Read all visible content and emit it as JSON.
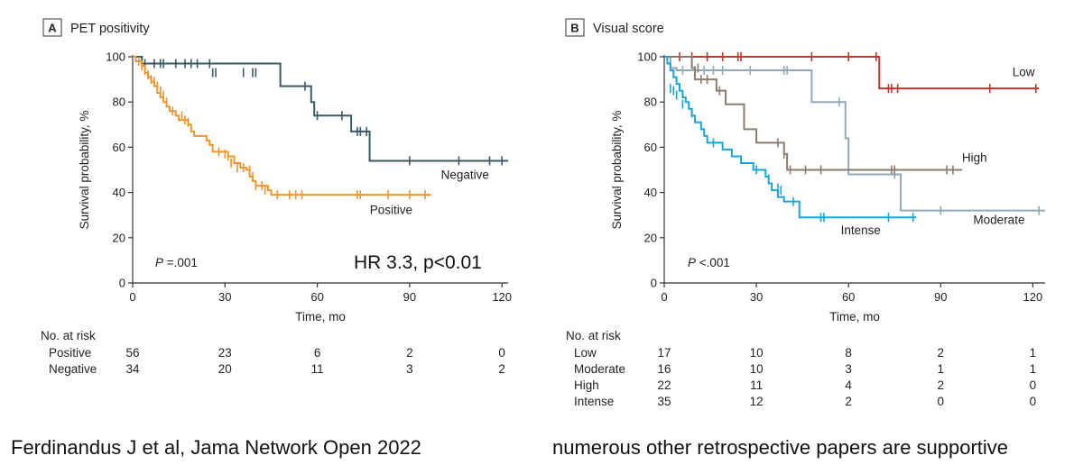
{
  "captions": {
    "left": "Ferdinandus J et al, Jama Network Open 2022",
    "right": "numerous other retrospective papers are supportive"
  },
  "chart_data": [
    {
      "type": "line",
      "panel": "A",
      "title": "PET positivity",
      "xlabel": "Time, mo",
      "ylabel": "Survival probability, %",
      "xlim": [
        0,
        122
      ],
      "ylim": [
        0,
        100
      ],
      "x_ticks": [
        0,
        30,
        60,
        90,
        120
      ],
      "y_ticks": [
        0,
        20,
        40,
        60,
        80,
        100
      ],
      "annotations": {
        "p_value": "P =.001",
        "hr": "HR 3.3, p<0.01"
      },
      "series": [
        {
          "name": "Negative",
          "color": "#3b5a66",
          "steps": [
            [
              0,
              100
            ],
            [
              3,
              97
            ],
            [
              48,
              97
            ],
            [
              48,
              93
            ],
            [
              48,
              87
            ],
            [
              56,
              87
            ],
            [
              58,
              80
            ],
            [
              59,
              74
            ],
            [
              70,
              74
            ],
            [
              71,
              67
            ],
            [
              76,
              67
            ],
            [
              77,
              54
            ],
            [
              122,
              54
            ]
          ],
          "censors": [
            [
              3,
              97
            ],
            [
              4,
              97
            ],
            [
              7,
              97
            ],
            [
              9,
              97
            ],
            [
              10,
              97
            ],
            [
              14,
              97
            ],
            [
              17,
              97
            ],
            [
              19,
              97
            ],
            [
              21,
              97
            ],
            [
              25,
              97
            ],
            [
              26,
              93
            ],
            [
              27,
              93
            ],
            [
              36,
              93
            ],
            [
              39,
              93
            ],
            [
              40,
              93
            ],
            [
              56,
              87
            ],
            [
              60,
              74
            ],
            [
              68,
              74
            ],
            [
              73,
              67
            ],
            [
              74,
              67
            ],
            [
              76,
              67
            ],
            [
              90,
              54
            ],
            [
              106,
              54
            ],
            [
              116,
              54
            ],
            [
              120,
              54
            ]
          ]
        },
        {
          "name": "Positive",
          "color": "#f0952b",
          "steps": [
            [
              0,
              100
            ],
            [
              1,
              98
            ],
            [
              3,
              96
            ],
            [
              4,
              93
            ],
            [
              5,
              91
            ],
            [
              6,
              89
            ],
            [
              7,
              87
            ],
            [
              8,
              84
            ],
            [
              9,
              82
            ],
            [
              10,
              80
            ],
            [
              11,
              78
            ],
            [
              12,
              76
            ],
            [
              14,
              74
            ],
            [
              15,
              72
            ],
            [
              18,
              70
            ],
            [
              19,
              67
            ],
            [
              20,
              65
            ],
            [
              24,
              63
            ],
            [
              25,
              61
            ],
            [
              26,
              58
            ],
            [
              30,
              58
            ],
            [
              31,
              56
            ],
            [
              33,
              53
            ],
            [
              35,
              51
            ],
            [
              37,
              50
            ],
            [
              38,
              47
            ],
            [
              39,
              45
            ],
            [
              40,
              43
            ],
            [
              44,
              41
            ],
            [
              45,
              39
            ],
            [
              97,
              39
            ]
          ],
          "censors": [
            [
              2,
              98
            ],
            [
              3,
              96
            ],
            [
              4,
              94
            ],
            [
              5,
              92
            ],
            [
              6,
              90
            ],
            [
              7,
              89
            ],
            [
              8,
              87
            ],
            [
              9,
              85
            ],
            [
              10,
              83
            ],
            [
              11,
              80
            ],
            [
              13,
              76
            ],
            [
              16,
              74
            ],
            [
              17,
              72
            ],
            [
              18,
              71
            ],
            [
              28,
              58
            ],
            [
              30,
              57
            ],
            [
              31,
              56
            ],
            [
              32,
              53
            ],
            [
              34,
              51
            ],
            [
              36,
              51
            ],
            [
              38,
              50
            ],
            [
              39,
              47
            ],
            [
              40,
              43
            ],
            [
              42,
              43
            ],
            [
              43,
              41
            ],
            [
              47,
              39
            ],
            [
              51,
              39
            ],
            [
              53,
              39
            ],
            [
              55,
              39
            ],
            [
              73,
              39
            ],
            [
              74,
              39
            ],
            [
              83,
              39
            ],
            [
              90,
              39
            ],
            [
              95,
              39
            ]
          ]
        }
      ],
      "labels": [
        {
          "series": "Negative",
          "text": "Negative",
          "x": 108,
          "y": 46
        },
        {
          "series": "Positive",
          "text": "Positive",
          "x": 84,
          "y": 30.5
        }
      ],
      "risk_table": {
        "header": "No. at risk",
        "times": [
          0,
          30,
          60,
          90,
          120
        ],
        "rows": [
          {
            "label": "Positive",
            "values": [
              "56",
              "23",
              "6",
              "2",
              "0"
            ]
          },
          {
            "label": "Negative",
            "values": [
              "34",
              "20",
              "11",
              "3",
              "2"
            ]
          }
        ]
      }
    },
    {
      "type": "line",
      "panel": "B",
      "title": "Visual score",
      "xlabel": "Time, mo",
      "ylabel": "Survival probability, %",
      "xlim": [
        0,
        124
      ],
      "ylim": [
        0,
        100
      ],
      "x_ticks": [
        0,
        30,
        60,
        90,
        120
      ],
      "y_ticks": [
        0,
        20,
        40,
        60,
        80,
        100
      ],
      "annotations": {
        "p_value": "P <.001"
      },
      "series": [
        {
          "name": "Low",
          "color": "#c0392b",
          "steps": [
            [
              0,
              100
            ],
            [
              70,
              100
            ],
            [
              70,
              86
            ],
            [
              122,
              86
            ]
          ],
          "censors": [
            [
              5,
              100
            ],
            [
              9,
              100
            ],
            [
              14,
              100
            ],
            [
              19,
              100
            ],
            [
              24,
              100
            ],
            [
              25,
              100
            ],
            [
              48,
              100
            ],
            [
              60,
              100
            ],
            [
              69,
              100
            ],
            [
              73,
              86
            ],
            [
              74,
              86
            ],
            [
              76,
              86
            ],
            [
              106,
              86
            ],
            [
              121,
              86
            ]
          ]
        },
        {
          "name": "Moderate",
          "color": "#8fa9b5",
          "steps": [
            [
              0,
              100
            ],
            [
              2,
              95
            ],
            [
              3,
              95
            ],
            [
              4,
              94
            ],
            [
              48,
              94
            ],
            [
              48,
              80
            ],
            [
              58,
              80
            ],
            [
              59,
              64
            ],
            [
              60,
              48
            ],
            [
              76,
              48
            ],
            [
              77,
              32
            ],
            [
              124,
              32
            ]
          ],
          "censors": [
            [
              6,
              94
            ],
            [
              10,
              94
            ],
            [
              13,
              94
            ],
            [
              16,
              94
            ],
            [
              19,
              94
            ],
            [
              28,
              94
            ],
            [
              39,
              94
            ],
            [
              40,
              94
            ],
            [
              57,
              80
            ],
            [
              75,
              48
            ],
            [
              90,
              32
            ],
            [
              122,
              32
            ]
          ]
        },
        {
          "name": "High",
          "color": "#8c7d6e",
          "steps": [
            [
              0,
              100
            ],
            [
              8,
              100
            ],
            [
              9,
              95
            ],
            [
              10,
              90
            ],
            [
              16,
              90
            ],
            [
              17,
              85
            ],
            [
              19,
              85
            ],
            [
              20,
              79
            ],
            [
              25,
              79
            ],
            [
              26,
              68
            ],
            [
              29,
              68
            ],
            [
              30,
              62
            ],
            [
              38,
              62
            ],
            [
              39,
              57
            ],
            [
              40,
              50
            ],
            [
              97,
              50
            ]
          ],
          "censors": [
            [
              9,
              98
            ],
            [
              11,
              95
            ],
            [
              12,
              90
            ],
            [
              14,
              90
            ],
            [
              18,
              85
            ],
            [
              37,
              62
            ],
            [
              39,
              57
            ],
            [
              41,
              50
            ],
            [
              46,
              50
            ],
            [
              51,
              50
            ],
            [
              74,
              50
            ],
            [
              75,
              50
            ],
            [
              92,
              50
            ],
            [
              94,
              50
            ]
          ]
        },
        {
          "name": "Intense",
          "color": "#1aa5d8",
          "steps": [
            [
              0,
              100
            ],
            [
              1,
              97
            ],
            [
              2,
              94
            ],
            [
              3,
              91
            ],
            [
              4,
              88
            ],
            [
              5,
              85
            ],
            [
              6,
              82
            ],
            [
              7,
              80
            ],
            [
              8,
              77
            ],
            [
              9,
              74
            ],
            [
              10,
              71
            ],
            [
              12,
              68
            ],
            [
              13,
              65
            ],
            [
              14,
              62
            ],
            [
              18,
              62
            ],
            [
              19,
              59
            ],
            [
              22,
              56
            ],
            [
              25,
              53
            ],
            [
              29,
              50
            ],
            [
              32,
              50
            ],
            [
              33,
              47
            ],
            [
              34,
              44
            ],
            [
              35,
              41
            ],
            [
              37,
              38
            ],
            [
              39,
              36
            ],
            [
              44,
              36
            ],
            [
              44,
              29
            ],
            [
              82,
              29
            ]
          ],
          "censors": [
            [
              2,
              86
            ],
            [
              3,
              85
            ],
            [
              4,
              83
            ],
            [
              6,
              79
            ],
            [
              9,
              75
            ],
            [
              16,
              62
            ],
            [
              30,
              50
            ],
            [
              34,
              46
            ],
            [
              37,
              42
            ],
            [
              38,
              41
            ],
            [
              42,
              36
            ],
            [
              51,
              29
            ],
            [
              52,
              29
            ],
            [
              73,
              29
            ],
            [
              81,
              29
            ]
          ]
        }
      ],
      "labels": [
        {
          "series": "Low",
          "text": "Low",
          "x": 117,
          "y": 91.5
        },
        {
          "series": "High",
          "text": "High",
          "x": 101,
          "y": 53.5
        },
        {
          "series": "Moderate",
          "text": "Moderate",
          "x": 109,
          "y": 26
        },
        {
          "series": "Intense",
          "text": "Intense",
          "x": 64,
          "y": 21.5
        }
      ],
      "risk_table": {
        "header": "No. at risk",
        "times": [
          0,
          30,
          60,
          90,
          120
        ],
        "rows": [
          {
            "label": "Low",
            "values": [
              "17",
              "10",
              "8",
              "2",
              "1"
            ]
          },
          {
            "label": "Moderate",
            "values": [
              "16",
              "10",
              "3",
              "1",
              "1"
            ]
          },
          {
            "label": "High",
            "values": [
              "22",
              "11",
              "4",
              "2",
              "0"
            ]
          },
          {
            "label": "Intense",
            "values": [
              "35",
              "12",
              "2",
              "0",
              "0"
            ]
          }
        ]
      }
    }
  ]
}
